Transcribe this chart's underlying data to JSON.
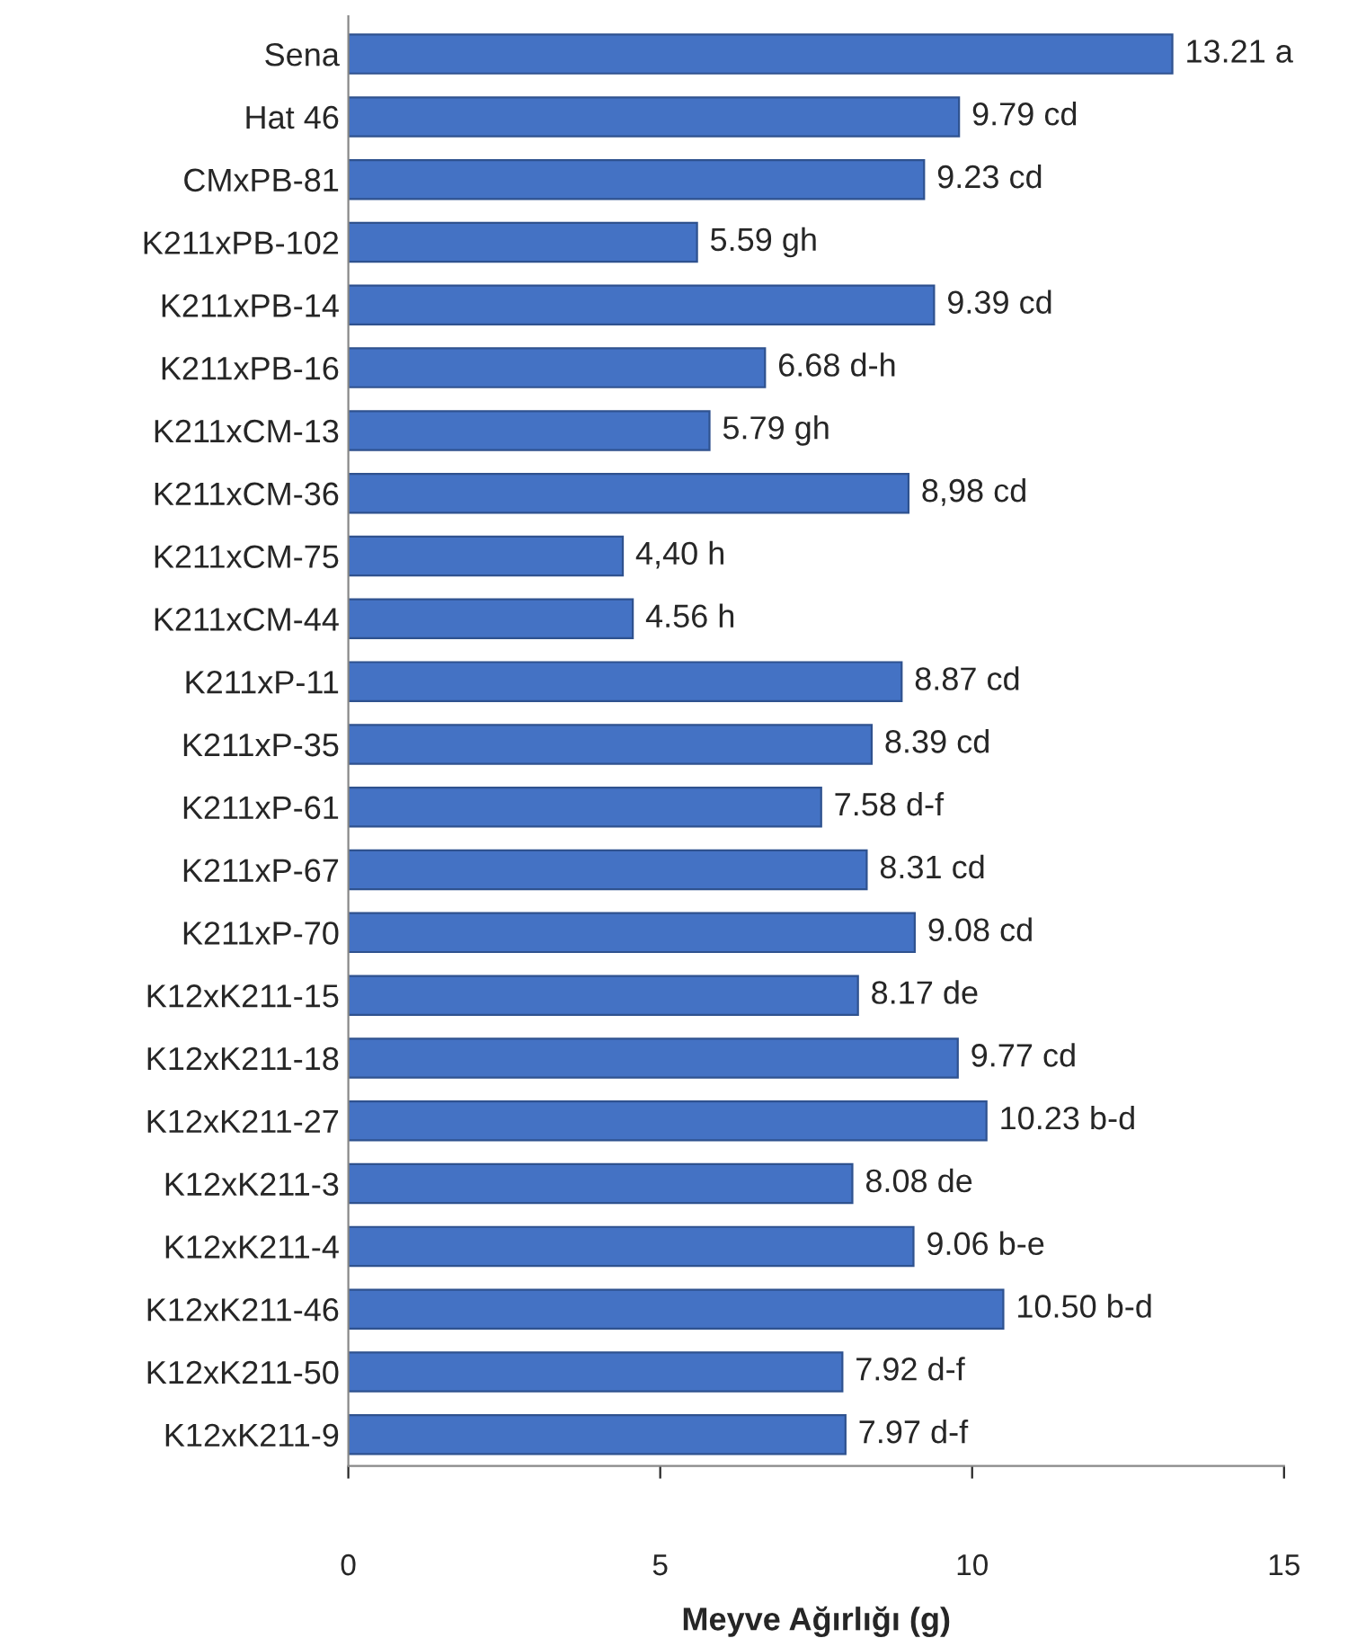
{
  "chart_data": {
    "type": "bar",
    "orientation": "horizontal",
    "xlabel": "Meyve Ağırlığı (g)",
    "categories": [
      "Sena",
      "Hat 46",
      "CMxPB-81",
      "K211xPB-102",
      "K211xPB-14",
      "K211xPB-16",
      "K211xCM-13",
      "K211xCM-36",
      "K211xCM-75",
      "K211xCM-44",
      "K211xP-11",
      "K211xP-35",
      "K211xP-61",
      "K211xP-67",
      "K211xP-70",
      "K12xK211-15",
      "K12xK211-18",
      "K12xK211-27",
      "K12xK211-3",
      "K12xK211-4",
      "K12xK211-46",
      "K12xK211-50",
      "K12xK211-9"
    ],
    "values": [
      13.21,
      9.79,
      9.23,
      5.59,
      9.39,
      6.68,
      5.79,
      8.98,
      4.4,
      4.56,
      8.87,
      8.39,
      7.58,
      8.31,
      9.08,
      8.17,
      9.77,
      10.23,
      8.08,
      9.06,
      10.5,
      7.92,
      7.97
    ],
    "value_labels": [
      "13.21 a",
      "9.79 cd",
      "9.23 cd",
      "5.59 gh",
      "9.39 cd",
      "6.68 d-h",
      "5.79 gh",
      "8,98 cd",
      "4,40 h",
      "4.56 h",
      "8.87 cd",
      "8.39 cd",
      "7.58 d-f",
      "8.31 cd",
      "9.08 cd",
      "8.17 de",
      "9.77 cd",
      "10.23 b-d",
      "8.08 de",
      "9.06 b-e",
      "10.50 b-d",
      "7.92 d-f",
      "7.97 d-f"
    ],
    "color": "#4472c4",
    "xlim": [
      0,
      15
    ],
    "xticks": [
      0,
      5,
      10,
      15
    ],
    "grid": false,
    "legend": false
  }
}
